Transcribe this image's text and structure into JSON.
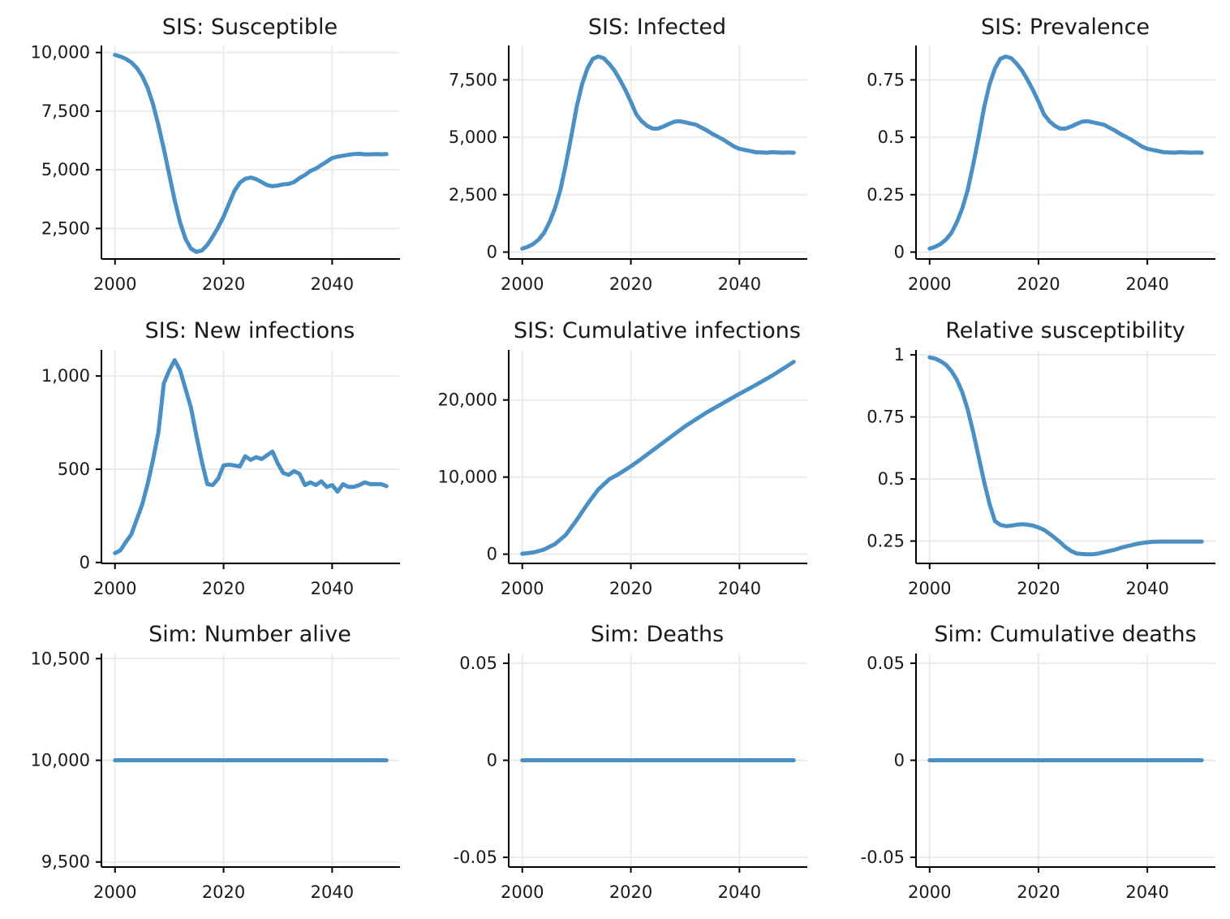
{
  "colors": {
    "series": "#4a90c4",
    "grid": "#ebebeb",
    "axis": "#000000",
    "background": "#ffffff"
  },
  "chart_data": [
    {
      "type": "line",
      "title": "SIS: Susceptible",
      "xlabel": "",
      "ylabel": "",
      "grid": true,
      "xlim": [
        1997.5,
        2052.5
      ],
      "ylim": [
        1200,
        10300
      ],
      "xticks": [
        2000,
        2020,
        2040
      ],
      "xtick_labels": [
        "2000",
        "2020",
        "2040"
      ],
      "yticks": [
        2500,
        5000,
        7500,
        10000
      ],
      "ytick_labels": [
        "2,500",
        "5,000",
        "7,500",
        "10,000"
      ],
      "series": [
        {
          "x": [
            2000,
            2001,
            2002,
            2003,
            2004,
            2005,
            2006,
            2007,
            2008,
            2009,
            2010,
            2011,
            2012,
            2013,
            2014,
            2015,
            2016,
            2017,
            2018,
            2019,
            2020,
            2021,
            2022,
            2023,
            2024,
            2025,
            2026,
            2027,
            2028,
            2029,
            2030,
            2031,
            2032,
            2033,
            2034,
            2035,
            2036,
            2037,
            2038,
            2039,
            2040,
            2041,
            2042,
            2043,
            2044,
            2045,
            2046,
            2047,
            2048,
            2049,
            2050
          ],
          "values": [
            9900,
            9830,
            9730,
            9580,
            9350,
            9000,
            8500,
            7800,
            6900,
            5900,
            4800,
            3700,
            2750,
            2050,
            1640,
            1500,
            1560,
            1800,
            2150,
            2550,
            3000,
            3550,
            4100,
            4450,
            4620,
            4670,
            4600,
            4480,
            4350,
            4300,
            4330,
            4380,
            4400,
            4480,
            4650,
            4780,
            4950,
            5050,
            5200,
            5350,
            5500,
            5560,
            5600,
            5640,
            5670,
            5680,
            5660,
            5660,
            5670,
            5660,
            5670
          ]
        }
      ]
    },
    {
      "type": "line",
      "title": "SIS: Infected",
      "xlabel": "",
      "ylabel": "",
      "grid": true,
      "xlim": [
        1997.5,
        2052.5
      ],
      "ylim": [
        -300,
        9000
      ],
      "xticks": [
        2000,
        2020,
        2040
      ],
      "xtick_labels": [
        "2000",
        "2020",
        "2040"
      ],
      "yticks": [
        0,
        2500,
        5000,
        7500
      ],
      "ytick_labels": [
        "0",
        "2,500",
        "5,000",
        "7,500"
      ],
      "series": [
        {
          "x": [
            2000,
            2001,
            2002,
            2003,
            2004,
            2005,
            2006,
            2007,
            2008,
            2009,
            2010,
            2011,
            2012,
            2013,
            2014,
            2015,
            2016,
            2017,
            2018,
            2019,
            2020,
            2021,
            2022,
            2023,
            2024,
            2025,
            2026,
            2027,
            2028,
            2029,
            2030,
            2031,
            2032,
            2033,
            2034,
            2035,
            2036,
            2037,
            2038,
            2039,
            2040,
            2041,
            2042,
            2043,
            2044,
            2045,
            2046,
            2047,
            2048,
            2049,
            2050
          ],
          "values": [
            150,
            230,
            350,
            540,
            830,
            1300,
            1900,
            2700,
            3800,
            5000,
            6300,
            7300,
            8000,
            8420,
            8520,
            8450,
            8200,
            7900,
            7500,
            7050,
            6550,
            6000,
            5700,
            5500,
            5380,
            5380,
            5470,
            5580,
            5680,
            5700,
            5650,
            5600,
            5550,
            5420,
            5300,
            5150,
            5030,
            4900,
            4750,
            4600,
            4500,
            4450,
            4400,
            4350,
            4340,
            4330,
            4350,
            4340,
            4330,
            4340,
            4330
          ]
        }
      ]
    },
    {
      "type": "line",
      "title": "SIS: Prevalence",
      "xlabel": "",
      "ylabel": "",
      "grid": true,
      "xlim": [
        1997.5,
        2052.5
      ],
      "ylim": [
        -0.03,
        0.9
      ],
      "xticks": [
        2000,
        2020,
        2040
      ],
      "xtick_labels": [
        "2000",
        "2020",
        "2040"
      ],
      "yticks": [
        0,
        0.25,
        0.5,
        0.75
      ],
      "ytick_labels": [
        "0",
        "0.25",
        "0.5",
        "0.75"
      ],
      "series": [
        {
          "x": [
            2000,
            2001,
            2002,
            2003,
            2004,
            2005,
            2006,
            2007,
            2008,
            2009,
            2010,
            2011,
            2012,
            2013,
            2014,
            2015,
            2016,
            2017,
            2018,
            2019,
            2020,
            2021,
            2022,
            2023,
            2024,
            2025,
            2026,
            2027,
            2028,
            2029,
            2030,
            2031,
            2032,
            2033,
            2034,
            2035,
            2036,
            2037,
            2038,
            2039,
            2040,
            2041,
            2042,
            2043,
            2044,
            2045,
            2046,
            2047,
            2048,
            2049,
            2050
          ],
          "values": [
            0.015,
            0.023,
            0.035,
            0.054,
            0.083,
            0.13,
            0.19,
            0.27,
            0.38,
            0.5,
            0.63,
            0.73,
            0.8,
            0.842,
            0.852,
            0.845,
            0.82,
            0.79,
            0.75,
            0.705,
            0.655,
            0.6,
            0.57,
            0.55,
            0.538,
            0.538,
            0.547,
            0.558,
            0.568,
            0.57,
            0.565,
            0.56,
            0.555,
            0.542,
            0.53,
            0.515,
            0.503,
            0.49,
            0.475,
            0.46,
            0.45,
            0.445,
            0.44,
            0.435,
            0.434,
            0.433,
            0.435,
            0.434,
            0.433,
            0.434,
            0.433
          ]
        }
      ]
    },
    {
      "type": "line",
      "title": "SIS: New infections",
      "xlabel": "",
      "ylabel": "",
      "grid": true,
      "xlim": [
        1997.5,
        2052.5
      ],
      "ylim": [
        -5,
        1140
      ],
      "xticks": [
        2000,
        2020,
        2040
      ],
      "xtick_labels": [
        "2000",
        "2020",
        "2040"
      ],
      "yticks": [
        0,
        500,
        1000
      ],
      "ytick_labels": [
        "0",
        "500",
        "1,000"
      ],
      "series": [
        {
          "x": [
            2000,
            2001,
            2002,
            2003,
            2004,
            2005,
            2006,
            2007,
            2008,
            2009,
            2010,
            2011,
            2012,
            2013,
            2014,
            2015,
            2016,
            2017,
            2018,
            2019,
            2020,
            2021,
            2022,
            2023,
            2024,
            2025,
            2026,
            2027,
            2028,
            2029,
            2030,
            2031,
            2032,
            2033,
            2034,
            2035,
            2036,
            2037,
            2038,
            2039,
            2040,
            2041,
            2042,
            2043,
            2044,
            2045,
            2046,
            2047,
            2048,
            2049,
            2050
          ],
          "values": [
            50,
            65,
            110,
            150,
            230,
            310,
            420,
            550,
            700,
            960,
            1030,
            1085,
            1030,
            930,
            830,
            680,
            540,
            420,
            415,
            450,
            520,
            525,
            520,
            515,
            570,
            550,
            565,
            555,
            575,
            595,
            530,
            480,
            470,
            490,
            475,
            415,
            430,
            415,
            435,
            405,
            415,
            380,
            420,
            405,
            405,
            415,
            430,
            420,
            420,
            420,
            410
          ]
        }
      ]
    },
    {
      "type": "line",
      "title": "SIS: Cumulative infections",
      "xlabel": "",
      "ylabel": "",
      "grid": true,
      "xlim": [
        1997.5,
        2052.5
      ],
      "ylim": [
        -1200,
        26500
      ],
      "xticks": [
        2000,
        2020,
        2040
      ],
      "xtick_labels": [
        "2000",
        "2020",
        "2040"
      ],
      "yticks": [
        0,
        10000,
        20000
      ],
      "ytick_labels": [
        "0",
        "10,000",
        "20,000"
      ],
      "series": [
        {
          "x": [
            2000,
            2002,
            2004,
            2006,
            2008,
            2010,
            2012,
            2014,
            2016,
            2018,
            2020,
            2022,
            2024,
            2026,
            2028,
            2030,
            2032,
            2034,
            2036,
            2038,
            2040,
            2042,
            2044,
            2046,
            2048,
            2050
          ],
          "values": [
            50,
            220,
            600,
            1300,
            2500,
            4400,
            6500,
            8400,
            9700,
            10500,
            11400,
            12400,
            13450,
            14500,
            15550,
            16600,
            17500,
            18400,
            19200,
            20000,
            20800,
            21550,
            22350,
            23150,
            24050,
            24950
          ]
        }
      ]
    },
    {
      "type": "line",
      "title": "Relative susceptibility",
      "xlabel": "",
      "ylabel": "",
      "grid": true,
      "xlim": [
        1997.5,
        2052.5
      ],
      "ylim": [
        0.16,
        1.02
      ],
      "xticks": [
        2000,
        2020,
        2040
      ],
      "xtick_labels": [
        "2000",
        "2020",
        "2040"
      ],
      "yticks": [
        0.25,
        0.5,
        0.75,
        1
      ],
      "ytick_labels": [
        "0.25",
        "0.5",
        "0.75",
        "1"
      ],
      "series": [
        {
          "x": [
            2000,
            2001,
            2002,
            2003,
            2004,
            2005,
            2006,
            2007,
            2008,
            2009,
            2010,
            2011,
            2012,
            2013,
            2014,
            2015,
            2016,
            2017,
            2018,
            2019,
            2020,
            2021,
            2022,
            2023,
            2024,
            2025,
            2026,
            2027,
            2028,
            2029,
            2030,
            2031,
            2032,
            2033,
            2034,
            2035,
            2036,
            2037,
            2038,
            2039,
            2040,
            2041,
            2042,
            2043,
            2044,
            2045,
            2046,
            2047,
            2048,
            2049,
            2050
          ],
          "values": [
            0.99,
            0.985,
            0.975,
            0.96,
            0.935,
            0.9,
            0.85,
            0.78,
            0.69,
            0.59,
            0.49,
            0.4,
            0.33,
            0.315,
            0.31,
            0.312,
            0.316,
            0.318,
            0.316,
            0.312,
            0.305,
            0.295,
            0.28,
            0.263,
            0.245,
            0.225,
            0.21,
            0.2,
            0.198,
            0.197,
            0.197,
            0.2,
            0.205,
            0.21,
            0.215,
            0.222,
            0.228,
            0.233,
            0.238,
            0.242,
            0.245,
            0.247,
            0.248,
            0.248,
            0.248,
            0.248,
            0.248,
            0.248,
            0.248,
            0.248,
            0.248
          ]
        }
      ]
    },
    {
      "type": "line",
      "title": "Sim: Number alive",
      "xlabel": "",
      "ylabel": "",
      "grid": true,
      "xlim": [
        1997.5,
        2052.5
      ],
      "ylim": [
        9475,
        10525
      ],
      "xticks": [
        2000,
        2020,
        2040
      ],
      "xtick_labels": [
        "2000",
        "2020",
        "2040"
      ],
      "yticks": [
        9500,
        10000,
        10500
      ],
      "ytick_labels": [
        "9,500",
        "10,000",
        "10,500"
      ],
      "series": [
        {
          "x": [
            2000,
            2050
          ],
          "values": [
            10000,
            10000
          ]
        }
      ]
    },
    {
      "type": "line",
      "title": "Sim: Deaths",
      "xlabel": "",
      "ylabel": "",
      "grid": true,
      "xlim": [
        1997.5,
        2052.5
      ],
      "ylim": [
        -0.055,
        0.055
      ],
      "xticks": [
        2000,
        2020,
        2040
      ],
      "xtick_labels": [
        "2000",
        "2020",
        "2040"
      ],
      "yticks": [
        -0.05,
        0,
        0.05
      ],
      "ytick_labels": [
        "-0.05",
        "0",
        "0.05"
      ],
      "series": [
        {
          "x": [
            2000,
            2050
          ],
          "values": [
            0,
            0
          ]
        }
      ]
    },
    {
      "type": "line",
      "title": "Sim: Cumulative deaths",
      "xlabel": "",
      "ylabel": "",
      "grid": true,
      "xlim": [
        1997.5,
        2052.5
      ],
      "ylim": [
        -0.055,
        0.055
      ],
      "xticks": [
        2000,
        2020,
        2040
      ],
      "xtick_labels": [
        "2000",
        "2020",
        "2040"
      ],
      "yticks": [
        -0.05,
        0,
        0.05
      ],
      "ytick_labels": [
        "-0.05",
        "0",
        "0.05"
      ],
      "series": [
        {
          "x": [
            2000,
            2050
          ],
          "values": [
            0,
            0
          ]
        }
      ]
    }
  ]
}
